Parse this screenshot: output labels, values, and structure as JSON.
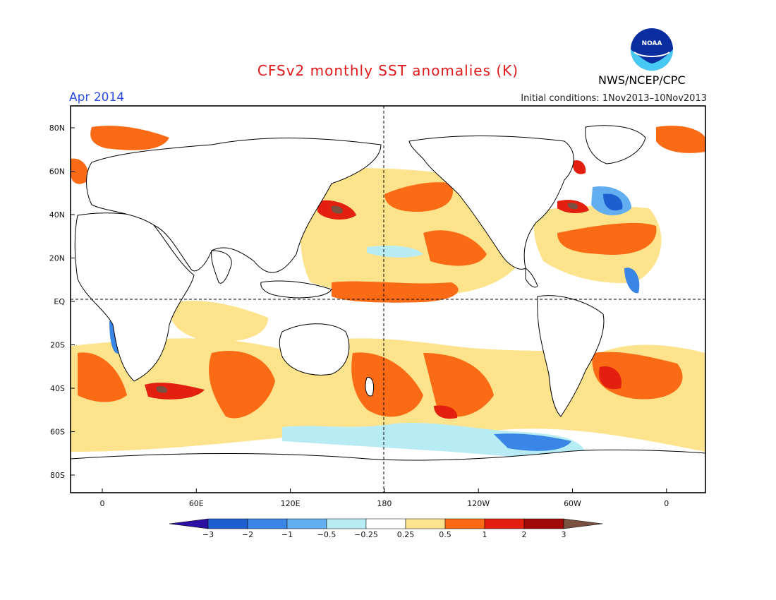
{
  "header": {
    "title": "CFSv2 monthly SST anomalies (K)",
    "agency": "NWS/NCEP/CPC",
    "logo_text": "NOAA",
    "month": "Apr 2014",
    "initial_conditions": "Initial conditions: 1Nov2013–10Nov2013"
  },
  "axes": {
    "lat_ticks": [
      "80N",
      "60N",
      "40N",
      "20N",
      "EQ",
      "20S",
      "40S",
      "60S",
      "80S"
    ],
    "lon_ticks": [
      "0",
      "60E",
      "120E",
      "180",
      "120W",
      "60W",
      "0"
    ]
  },
  "colorbar": {
    "labels": [
      "−3",
      "−2",
      "−1",
      "−0.5",
      "−0.25",
      "0.25",
      "0.5",
      "1",
      "2",
      "3"
    ],
    "colors": [
      "#2a0fa0",
      "#1e5fd0",
      "#3a86e6",
      "#63aef0",
      "#b8ecf4",
      "#ffffff",
      "#fde38c",
      "#fb6b15",
      "#e3200f",
      "#a20a0a",
      "#7a5040"
    ]
  }
}
